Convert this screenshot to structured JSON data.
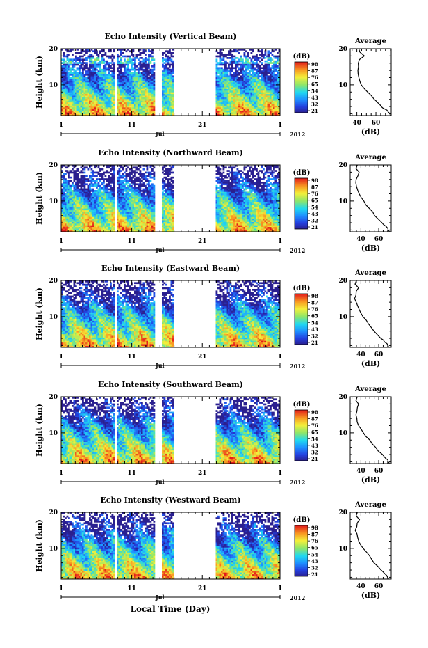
{
  "figure": {
    "xlabel": "Local Time (Day)"
  },
  "chart_data": [
    {
      "type": "heatmap",
      "title": "Echo Intensity (Vertical Beam)",
      "ylabel": "Height (km)",
      "x_ticks": [
        "1",
        "11",
        "21",
        "1"
      ],
      "x_month": "Jul",
      "x_year": "2012",
      "y_ticks": [
        "20",
        "10"
      ],
      "ylim": [
        1.5,
        20
      ],
      "colorbar_label": "(dB)",
      "colorbar_ticks": [
        "98",
        "87",
        "76",
        "65",
        "54",
        "43",
        "32",
        "21"
      ],
      "data_gaps_days": [
        [
          8.6,
          8.9
        ],
        [
          14.2,
          15.3
        ],
        [
          17.0,
          22.8
        ],
        [
          29.0,
          29.15
        ]
      ],
      "average_profile": {
        "title": "Average",
        "xlabel": "(dB)",
        "x_ticks": [
          "40",
          "60"
        ],
        "y_ticks": [
          "20",
          "10"
        ],
        "xlim": [
          33,
          76
        ],
        "height_km": [
          1.6,
          2,
          2.5,
          3,
          3.5,
          4,
          4.5,
          5,
          5.5,
          6,
          7,
          8,
          9,
          10,
          11,
          12,
          13,
          14,
          15,
          16,
          17,
          18,
          19,
          20
        ],
        "db": [
          75,
          74,
          73,
          71,
          68,
          66,
          64,
          62,
          60,
          58,
          55,
          52,
          48,
          45,
          43,
          42,
          41,
          41,
          41,
          42,
          43,
          48,
          44,
          42
        ]
      }
    },
    {
      "type": "heatmap",
      "title": "Echo Intensity (Northward Beam)",
      "ylabel": "Height (km)",
      "x_ticks": [
        "1",
        "11",
        "21",
        "1"
      ],
      "x_month": "Jul",
      "x_year": "2012",
      "y_ticks": [
        "20",
        "10"
      ],
      "ylim": [
        1.5,
        20
      ],
      "colorbar_label": "(dB)",
      "colorbar_ticks": [
        "98",
        "87",
        "76",
        "65",
        "54",
        "43",
        "32",
        "21"
      ],
      "data_gaps_days": [
        [
          8.6,
          8.9
        ],
        [
          14.2,
          15.3
        ],
        [
          17.0,
          22.8
        ],
        [
          29.0,
          29.15
        ]
      ],
      "average_profile": {
        "title": "Average",
        "xlabel": "(dB)",
        "x_ticks": [
          "40",
          "60"
        ],
        "y_ticks": [
          "20",
          "10"
        ],
        "xlim": [
          28,
          74
        ],
        "height_km": [
          1.6,
          2,
          2.5,
          3,
          3.5,
          4,
          5,
          6,
          7,
          8,
          9,
          10,
          11,
          12,
          13,
          14,
          15,
          16,
          17,
          18,
          19,
          20
        ],
        "db": [
          72,
          71,
          70,
          68,
          66,
          64,
          60,
          56,
          53,
          50,
          46,
          43,
          40,
          38,
          36,
          35,
          34,
          35,
          36,
          38,
          35,
          36
        ]
      }
    },
    {
      "type": "heatmap",
      "title": "Echo Intensity (Eastward Beam)",
      "ylabel": "Height (km)",
      "x_ticks": [
        "1",
        "11",
        "21",
        "1"
      ],
      "x_month": "Jul",
      "x_year": "2012",
      "y_ticks": [
        "20",
        "10"
      ],
      "ylim": [
        1.5,
        20
      ],
      "colorbar_label": "(dB)",
      "colorbar_ticks": [
        "98",
        "87",
        "76",
        "65",
        "54",
        "43",
        "32",
        "21"
      ],
      "data_gaps_days": [
        [
          8.6,
          8.9
        ],
        [
          14.2,
          15.3
        ],
        [
          17.0,
          22.8
        ],
        [
          29.0,
          29.15
        ]
      ],
      "average_profile": {
        "title": "Average",
        "xlabel": "(dB)",
        "x_ticks": [
          "40",
          "60"
        ],
        "y_ticks": [
          "20",
          "10"
        ],
        "xlim": [
          28,
          74
        ],
        "height_km": [
          1.6,
          2,
          2.5,
          3,
          3.5,
          4,
          5,
          6,
          7,
          8,
          9,
          10,
          11,
          12,
          13,
          14,
          15,
          16,
          17,
          18,
          19,
          20
        ],
        "db": [
          71,
          70,
          69,
          67,
          65,
          63,
          59,
          55,
          52,
          49,
          46,
          43,
          40,
          38,
          36,
          35,
          33,
          34,
          35,
          37,
          34,
          35
        ]
      }
    },
    {
      "type": "heatmap",
      "title": "Echo Intensity (Southward Beam)",
      "ylabel": "Height (km)",
      "x_ticks": [
        "1",
        "11",
        "21",
        "1"
      ],
      "x_month": "Jul",
      "x_year": "2012",
      "y_ticks": [
        "20",
        "10"
      ],
      "ylim": [
        1.5,
        20
      ],
      "colorbar_label": "(dB)",
      "colorbar_ticks": [
        "98",
        "87",
        "76",
        "65",
        "54",
        "43",
        "32",
        "21"
      ],
      "data_gaps_days": [
        [
          8.6,
          8.9
        ],
        [
          14.2,
          15.3
        ],
        [
          17.0,
          22.8
        ],
        [
          29.0,
          29.15
        ]
      ],
      "average_profile": {
        "title": "Average",
        "xlabel": "(dB)",
        "x_ticks": [
          "40",
          "60"
        ],
        "y_ticks": [
          "20",
          "10"
        ],
        "xlim": [
          28,
          74
        ],
        "height_km": [
          1.6,
          2,
          2.5,
          3,
          3.5,
          4,
          5,
          6,
          7,
          8,
          9,
          10,
          11,
          12,
          13,
          14,
          15,
          16,
          17,
          18,
          19,
          20
        ],
        "db": [
          72,
          71,
          70,
          68,
          66,
          64,
          60,
          56,
          53,
          50,
          46,
          43,
          40,
          38,
          36,
          35,
          34,
          35,
          36,
          38,
          35,
          36
        ]
      }
    },
    {
      "type": "heatmap",
      "title": "Echo Intensity (Westward Beam)",
      "ylabel": "Height (km)",
      "x_ticks": [
        "1",
        "11",
        "21",
        "1"
      ],
      "x_month": "Jul",
      "x_year": "2012",
      "y_ticks": [
        "20",
        "10"
      ],
      "ylim": [
        1.5,
        20
      ],
      "colorbar_label": "(dB)",
      "colorbar_ticks": [
        "98",
        "87",
        "76",
        "65",
        "54",
        "43",
        "32",
        "21"
      ],
      "data_gaps_days": [
        [
          8.6,
          8.9
        ],
        [
          14.2,
          15.3
        ],
        [
          17.0,
          22.8
        ],
        [
          29.0,
          29.15
        ]
      ],
      "average_profile": {
        "title": "Average",
        "xlabel": "(dB)",
        "x_ticks": [
          "40",
          "60"
        ],
        "y_ticks": [
          "20",
          "10"
        ],
        "xlim": [
          28,
          74
        ],
        "height_km": [
          1.6,
          2,
          2.5,
          3,
          3.5,
          4,
          5,
          6,
          7,
          8,
          9,
          10,
          11,
          12,
          13,
          14,
          15,
          16,
          17,
          18,
          19,
          20
        ],
        "db": [
          71,
          70,
          69,
          67,
          65,
          63,
          59,
          55,
          52,
          49,
          46,
          43,
          40,
          38,
          36,
          35,
          34,
          35,
          36,
          38,
          35,
          36
        ]
      }
    }
  ]
}
